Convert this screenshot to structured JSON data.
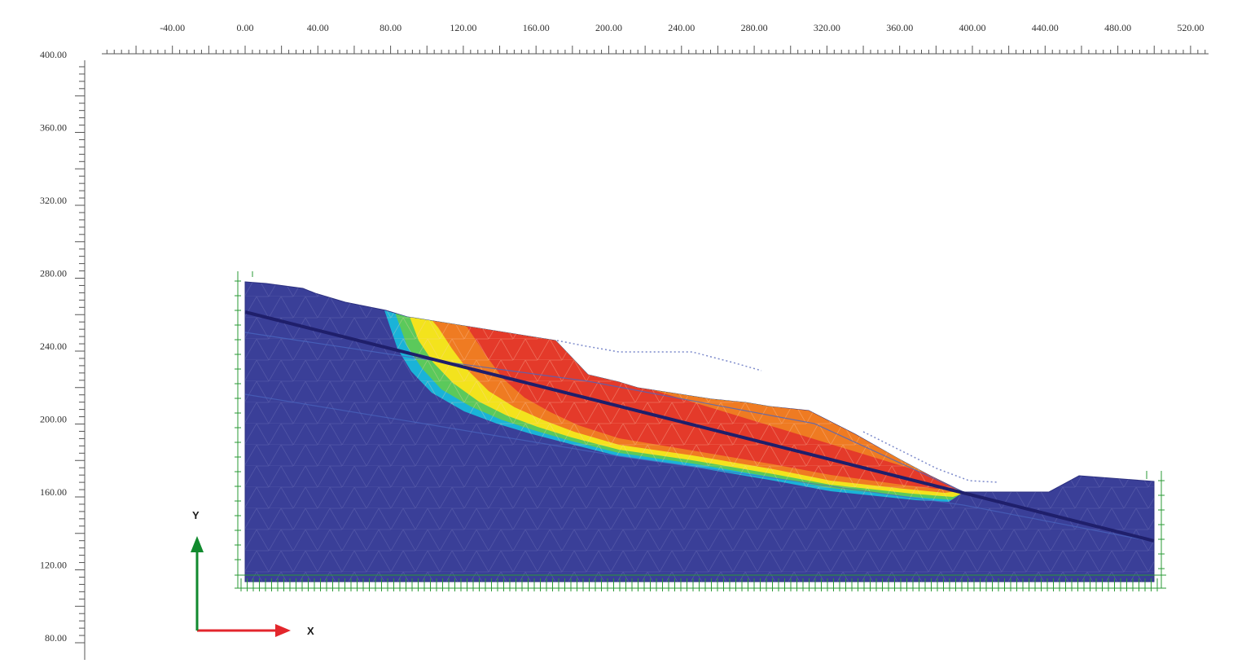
{
  "canvas": {
    "background": "#ffffff"
  },
  "rulers": {
    "top_ticks": [
      "-40.00",
      "0.00",
      "40.00",
      "80.00",
      "120.00",
      "160.00",
      "200.00",
      "240.00",
      "280.00",
      "320.00",
      "360.00",
      "400.00",
      "440.00",
      "480.00",
      "520.00"
    ],
    "left_ticks": [
      "400.00",
      "360.00",
      "320.00",
      "280.00",
      "240.00",
      "200.00",
      "160.00",
      "120.00",
      "80.00"
    ],
    "x_range": [
      -40,
      520
    ],
    "y_range": [
      80,
      400
    ]
  },
  "axis_gizmo": {
    "x_label": "X",
    "y_label": "Y",
    "x_color": "#e3262c",
    "y_color": "#118a2e"
  },
  "model": {
    "description_colors": {
      "base": "#3a3f98",
      "cyan": "#1ab3d8",
      "green": "#5bc95b",
      "yellow": "#f3e31d",
      "orange": "#ef7b22",
      "red": "#e43a2a",
      "slip_line": "#1f1f6b",
      "boundary": "#2a9a34"
    },
    "icons": [
      "axis-x-arrow-icon",
      "axis-y-arrow-icon"
    ]
  }
}
